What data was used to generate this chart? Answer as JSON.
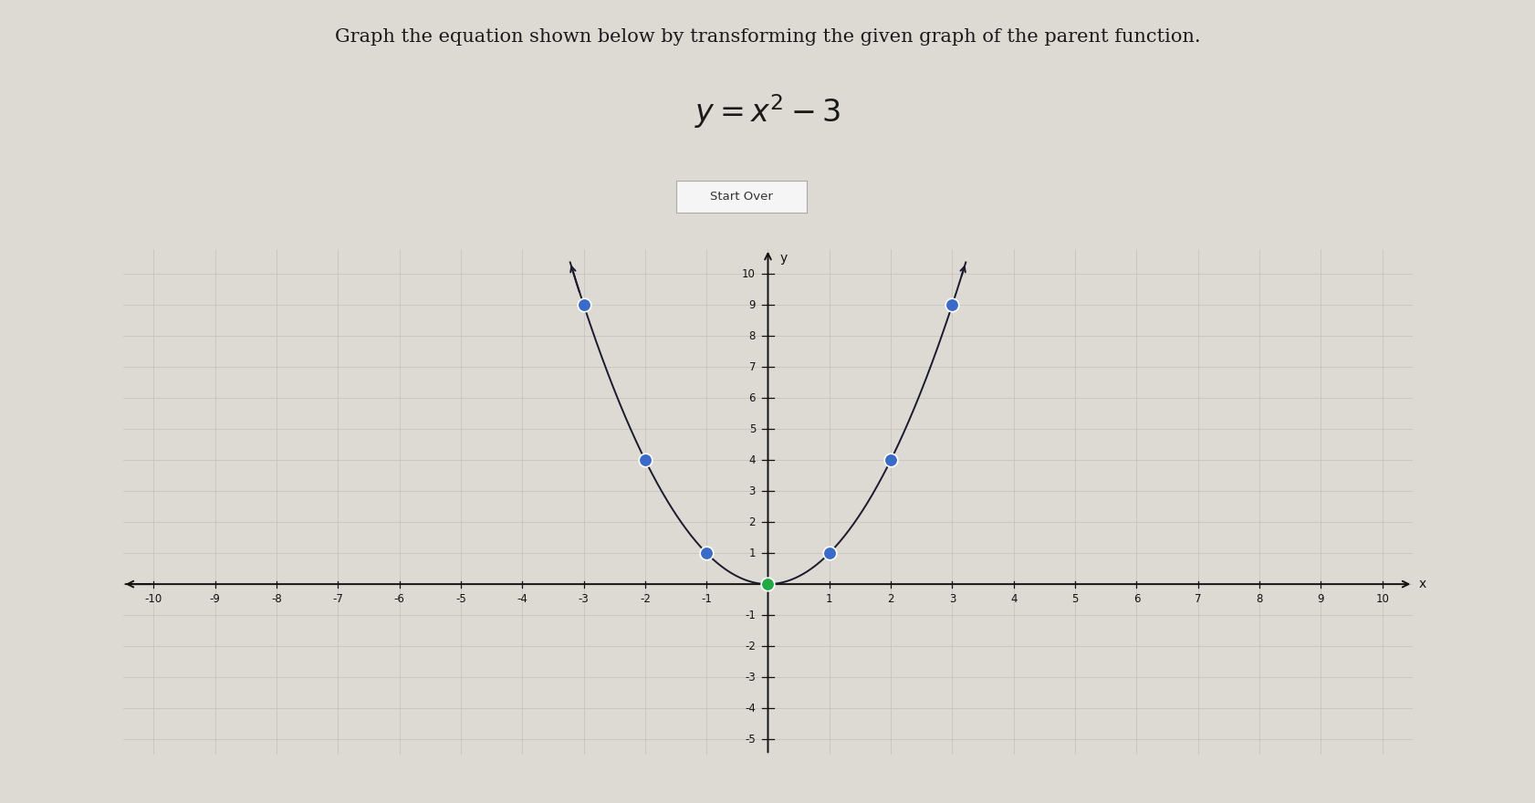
{
  "title": "Graph the equation shown below by transforming the given graph of the parent function.",
  "background_color": "#ddd9d3",
  "grid_color": "#c4bfb9",
  "axis_color": "#111111",
  "curve_color": "#1a1a2e",
  "blue_dot_color": "#3a6bc9",
  "green_dot_color": "#22aa44",
  "xlim": [
    -10.5,
    10.5
  ],
  "ylim": [
    -5.5,
    10.8
  ],
  "xticks": [
    -10,
    -9,
    -8,
    -7,
    -6,
    -5,
    -4,
    -3,
    -2,
    -1,
    1,
    2,
    3,
    4,
    5,
    6,
    7,
    8,
    9,
    10
  ],
  "yticks": [
    -5,
    -4,
    -3,
    -2,
    -1,
    1,
    2,
    3,
    4,
    5,
    6,
    7,
    8,
    9,
    10
  ],
  "blue_dots_x": [
    -3,
    -2,
    -1,
    1,
    2,
    3
  ],
  "blue_dots_y": [
    9,
    4,
    1,
    1,
    4,
    9
  ],
  "green_dot_x": 0,
  "green_dot_y": 0,
  "button_text": "Start Over",
  "title_fontsize": 15,
  "equation_fontsize": 24,
  "tick_fontsize": 8.5
}
